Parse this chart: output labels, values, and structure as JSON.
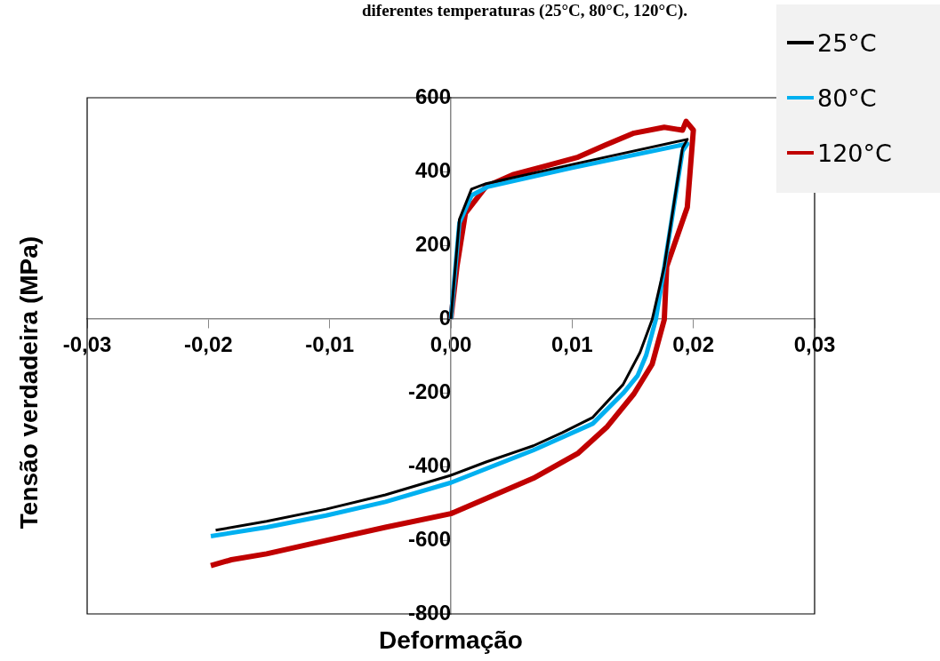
{
  "chart_data": {
    "type": "line",
    "title": "diferentes temperaturas (25°C, 80°C, 120°C).",
    "xlabel": "Deformação",
    "ylabel": "Tensão verdadeira (MPa)",
    "xlim": [
      -0.03,
      0.03
    ],
    "xticks": [
      {
        "value": -0.03,
        "label": "-0,03"
      },
      {
        "value": -0.02,
        "label": "-0,02"
      },
      {
        "value": -0.01,
        "label": "-0,01"
      },
      {
        "value": 0,
        "label": "0,00"
      },
      {
        "value": 0.01,
        "label": "0,01"
      },
      {
        "value": 0.02,
        "label": "0,02"
      },
      {
        "value": 0.03,
        "label": "0,03"
      }
    ],
    "ylim": [
      -800,
      600
    ],
    "yticks": [
      -800,
      -600,
      -400,
      -200,
      0,
      200,
      400,
      600
    ],
    "grid": false,
    "legend": "top right",
    "line_style": "solid",
    "series": [
      {
        "name": "25°C",
        "color": "#000000",
        "x": [
          0,
          0.0007,
          0.0017,
          0.0029,
          0.01,
          0.0195,
          0.0191,
          0.0176,
          0.0166,
          0.0156,
          0.0142,
          0.0117,
          0.0092,
          0.0068,
          0.0029,
          0,
          -0.0054,
          -0.0103,
          -0.0152,
          -0.0194
        ],
        "values": [
          0,
          270,
          352,
          367,
          419,
          487,
          463,
          142,
          -2,
          -91,
          -178,
          -267,
          -308,
          -344,
          -388,
          -424,
          -477,
          -516,
          -549,
          -573
        ]
      },
      {
        "name": "80°C",
        "color": "#00b0f0",
        "x": [
          0,
          0.0007,
          0.0017,
          0.003,
          0.01,
          0.0195,
          0.0191,
          0.0176,
          0.0169,
          0.0161,
          0.0154,
          0.0142,
          0.0117,
          0.0068,
          0,
          -0.0054,
          -0.0103,
          -0.0152,
          -0.0198
        ],
        "values": [
          0,
          260,
          335,
          358,
          410,
          475,
          455,
          140,
          -2,
          -99,
          -154,
          -202,
          -284,
          -356,
          -444,
          -496,
          -533,
          -565,
          -589
        ]
      },
      {
        "name": "120°C",
        "color": "#c00000",
        "x": [
          0,
          0.0005,
          0.0012,
          0.0029,
          0.0051,
          0.0078,
          0.0105,
          0.0127,
          0.0151,
          0.0176,
          0.0191,
          0.0194,
          0.02,
          0.0195,
          0.0178,
          0.0176,
          0.0166,
          0.0151,
          0.0129,
          0.0105,
          0.0068,
          0,
          -0.0054,
          -0.0103,
          -0.0152,
          -0.0181,
          -0.0198
        ],
        "values": [
          0,
          142,
          287,
          359,
          391,
          415,
          439,
          471,
          504,
          520,
          512,
          536,
          512,
          303,
          142,
          -2,
          -123,
          -203,
          -292,
          -364,
          -432,
          -528,
          -565,
          -601,
          -637,
          -653,
          -669
        ]
      }
    ]
  }
}
